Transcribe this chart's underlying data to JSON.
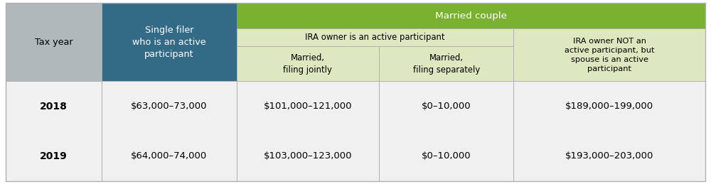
{
  "green_header_bg": "#7ab130",
  "green_header_text": "#ffffff",
  "blue_header_bg": "#336b87",
  "blue_header_text": "#ffffff",
  "light_green_bg": "#dde8c0",
  "light_gray_header_bg": "#b0b8bc",
  "light_gray_data_bg": "#f0f0f0",
  "white_bg": "#ffffff",
  "grid_color": "#b0b0b0",
  "col_props": [
    0.118,
    0.165,
    0.175,
    0.165,
    0.235
  ],
  "row_props": [
    0.145,
    0.1,
    0.195,
    0.56
  ],
  "header_fontsize": 9.2,
  "data_fontsize": 9.5,
  "year_fontsize": 10.0,
  "data_rows": [
    [
      "2018",
      "$63,000–73,000",
      "$101,000–121,000",
      "$0–10,000",
      "$189,000–199,000"
    ],
    [
      "2019",
      "$64,000–74,000",
      "$103,000–123,000",
      "$0–10,000",
      "$193,000–203,000"
    ]
  ]
}
